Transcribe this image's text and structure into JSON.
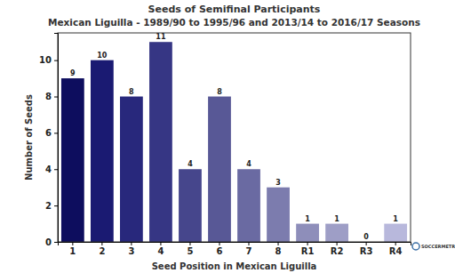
{
  "chart_data": {
    "type": "bar",
    "title": "Seeds of Semifinal Participants",
    "subtitle": "Mexican Liguilla - 1989/90 to 1995/96 and 2013/14 to 2016/17 Seasons",
    "x_label": "Seed Position in Mexican Liguilla",
    "y_label": "Number of Seeds",
    "categories": [
      "1",
      "2",
      "3",
      "4",
      "5",
      "6",
      "7",
      "8",
      "R1",
      "R2",
      "R3",
      "R4"
    ],
    "values": [
      9,
      10,
      8,
      11,
      4,
      8,
      4,
      3,
      1,
      1,
      0,
      1
    ],
    "colors": [
      "#0d0d5e",
      "#1a1a72",
      "#28287c",
      "#363684",
      "#46468c",
      "#585896",
      "#6a6aa2",
      "#7c7cae",
      "#8e8eba",
      "#9e9ec6",
      "#b0b0d0",
      "#b8b8dc"
    ],
    "ylim": [
      0,
      11.5
    ],
    "yticks": [
      0,
      2,
      4,
      6,
      8,
      10
    ],
    "data_labels": true,
    "grid": false,
    "annotations": [
      "SOCCERMETRICS"
    ]
  }
}
